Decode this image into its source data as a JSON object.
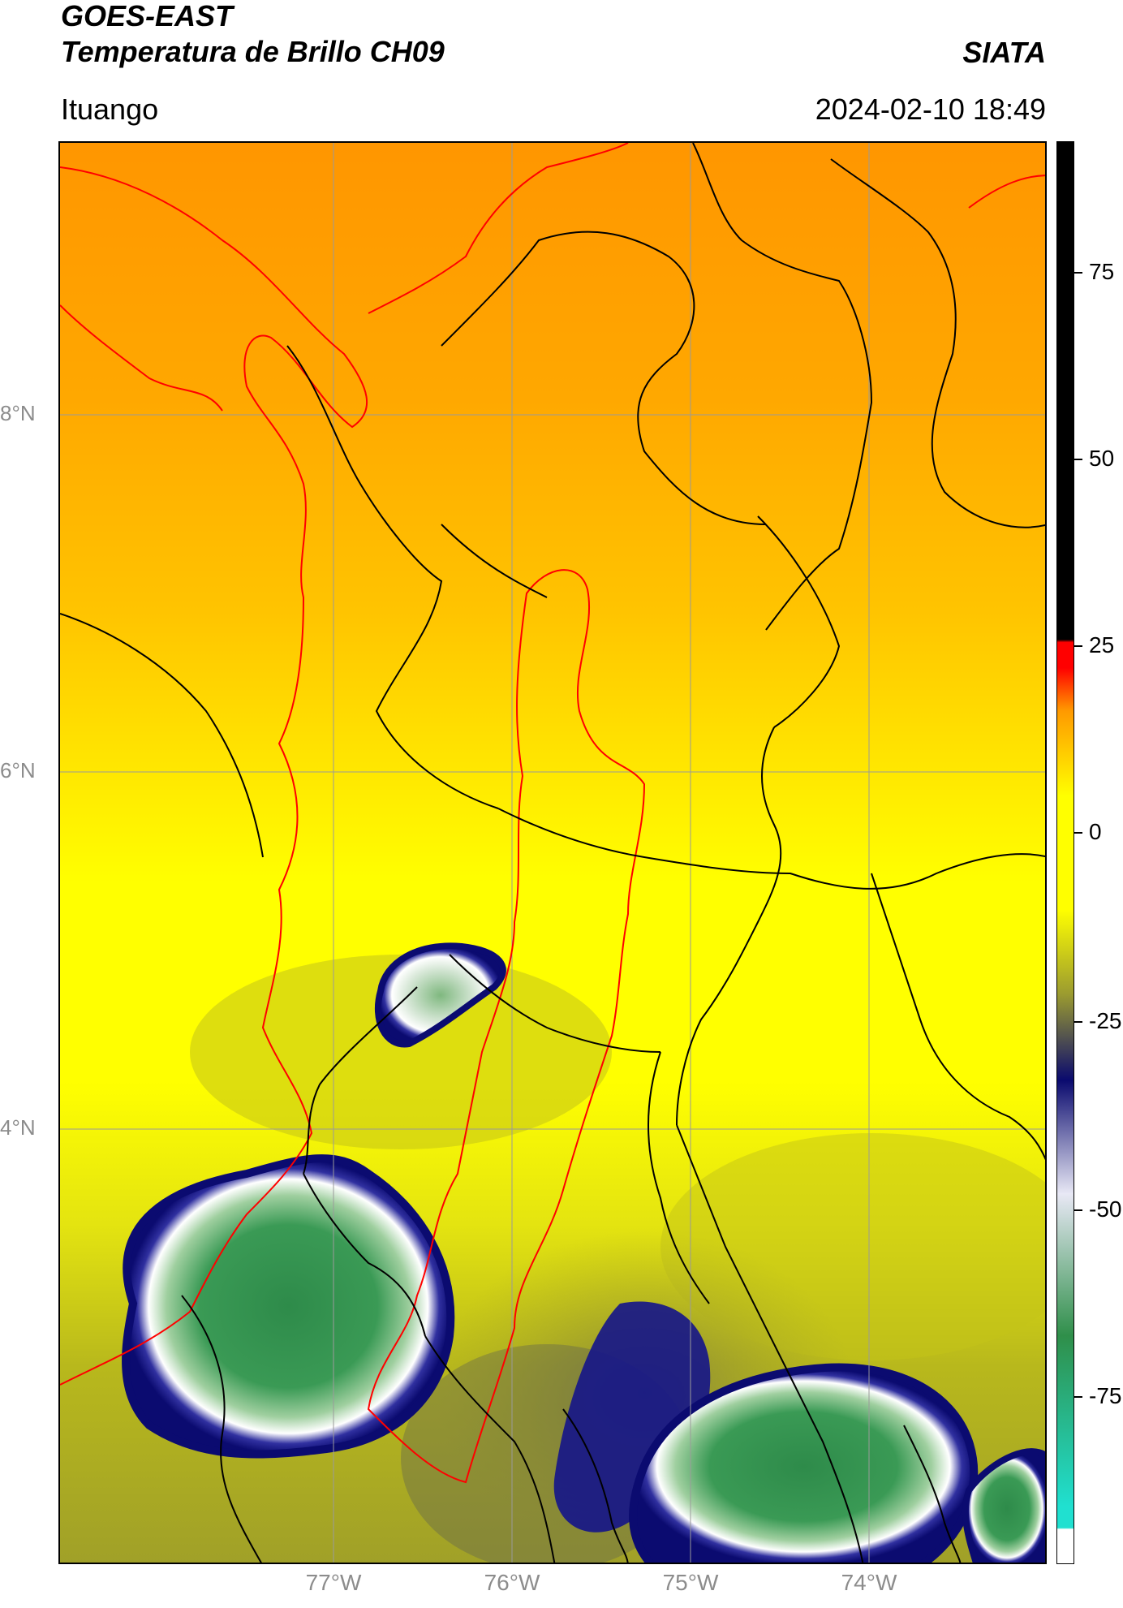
{
  "header": {
    "satellite": "GOES-EAST",
    "product": "Temperatura de Brillo CH09",
    "org": "SIATA",
    "region": "Ituango",
    "datetime": "2024-02-10 18:49"
  },
  "map": {
    "lat_labels": [
      "8°N",
      "6°N",
      "4°N"
    ],
    "lon_labels": [
      "77°W",
      "76°W",
      "75°W",
      "74°W"
    ],
    "colors": {
      "orange": "#ff9900",
      "yellow": "#ffff00",
      "olive": "#a8a81e",
      "navy": "#0b0b7a",
      "white": "#ffffff",
      "green": "#2f8f4a",
      "coast_line": "#ff0000",
      "border_line": "#000000",
      "grid": "#9a9a9a"
    }
  },
  "colorbar": {
    "labels": [
      "75",
      "50",
      "25",
      "0",
      "-25",
      "-50",
      "-75"
    ],
    "colors": {
      "black": "#000000",
      "red": "#ff0000",
      "orange": "#ff9900",
      "yellow": "#ffff00",
      "olive": "#9a9a30",
      "navy": "#0a0a6e",
      "light": "#e8e8f5",
      "green": "#2f8f4a",
      "cyan": "#20e0d0",
      "white": "#ffffff"
    }
  }
}
